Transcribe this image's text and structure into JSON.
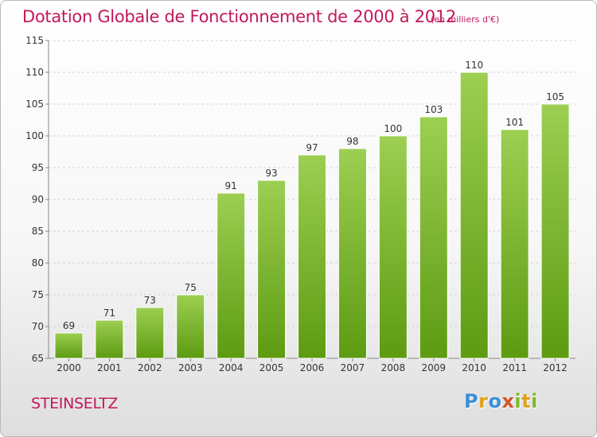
{
  "header": {
    "title": "Dotation Globale de Fonctionnement de 2000 à 2012",
    "unit": "(en milliers d'€)"
  },
  "footer": {
    "commune": "STEINSELTZ",
    "brand": "Proxiti"
  },
  "colors": {
    "title": "#c2185b",
    "bar_light": "#9ccf52",
    "bar_dark": "#5d9b12",
    "brand_letters": [
      "#3a8fd6",
      "#e2a21c",
      "#3a8fd6",
      "#d4542a",
      "#7dbb2a",
      "#e2a21c",
      "#7dbb2a"
    ]
  },
  "chart_data": {
    "type": "bar",
    "title": "Dotation Globale de Fonctionnement de 2000 à 2012",
    "subtitle": "(en milliers d'€)",
    "categories": [
      "2000",
      "2001",
      "2002",
      "2003",
      "2004",
      "2005",
      "2006",
      "2007",
      "2008",
      "2009",
      "2010",
      "2011",
      "2012"
    ],
    "values": [
      69,
      71,
      73,
      75,
      91,
      93,
      97,
      98,
      100,
      103,
      110,
      101,
      105
    ],
    "ylim": [
      65,
      115
    ],
    "yticks": [
      65,
      70,
      75,
      80,
      85,
      90,
      95,
      100,
      105,
      110,
      115
    ],
    "grid": true,
    "xlabel": "",
    "ylabel": ""
  }
}
